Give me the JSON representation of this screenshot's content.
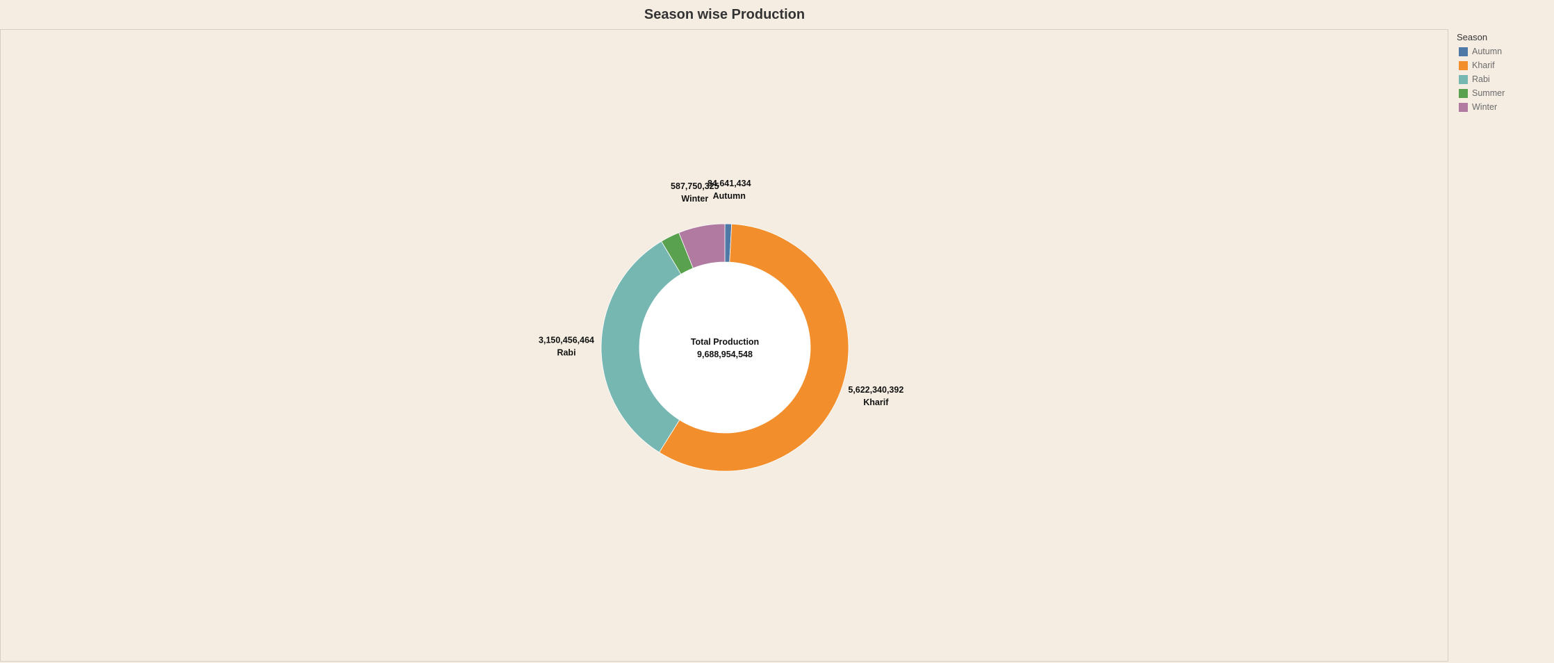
{
  "title": "Season wise Production",
  "legend": {
    "title": "Season",
    "items": [
      {
        "label": "Autumn",
        "color": "#4e79a7"
      },
      {
        "label": "Kharif",
        "color": "#f28e2b"
      },
      {
        "label": "Rabi",
        "color": "#76b7b2"
      },
      {
        "label": "Summer",
        "color": "#59a14f"
      },
      {
        "label": "Winter",
        "color": "#b07aa1"
      }
    ]
  },
  "chart_data": {
    "type": "pie",
    "donut": true,
    "title": "Season wise Production",
    "center_label": "Total Production",
    "center_value": "9,688,954,548",
    "slices": [
      {
        "name": "Autumn",
        "value": 84641434,
        "value_label": "84,641,434",
        "color": "#4e79a7",
        "labeled": true
      },
      {
        "name": "Kharif",
        "value": 5622340392,
        "value_label": "5,622,340,392",
        "color": "#f28e2b",
        "labeled": true
      },
      {
        "name": "Rabi",
        "value": 3150456464,
        "value_label": "3,150,456,464",
        "color": "#76b7b2",
        "labeled": true
      },
      {
        "name": "Summer",
        "value": 243765933,
        "value_label": "",
        "color": "#59a14f",
        "labeled": false
      },
      {
        "name": "Winter",
        "value": 587750325,
        "value_label": "587,750,325",
        "color": "#b07aa1",
        "labeled": true
      }
    ],
    "legend_position": "right"
  }
}
